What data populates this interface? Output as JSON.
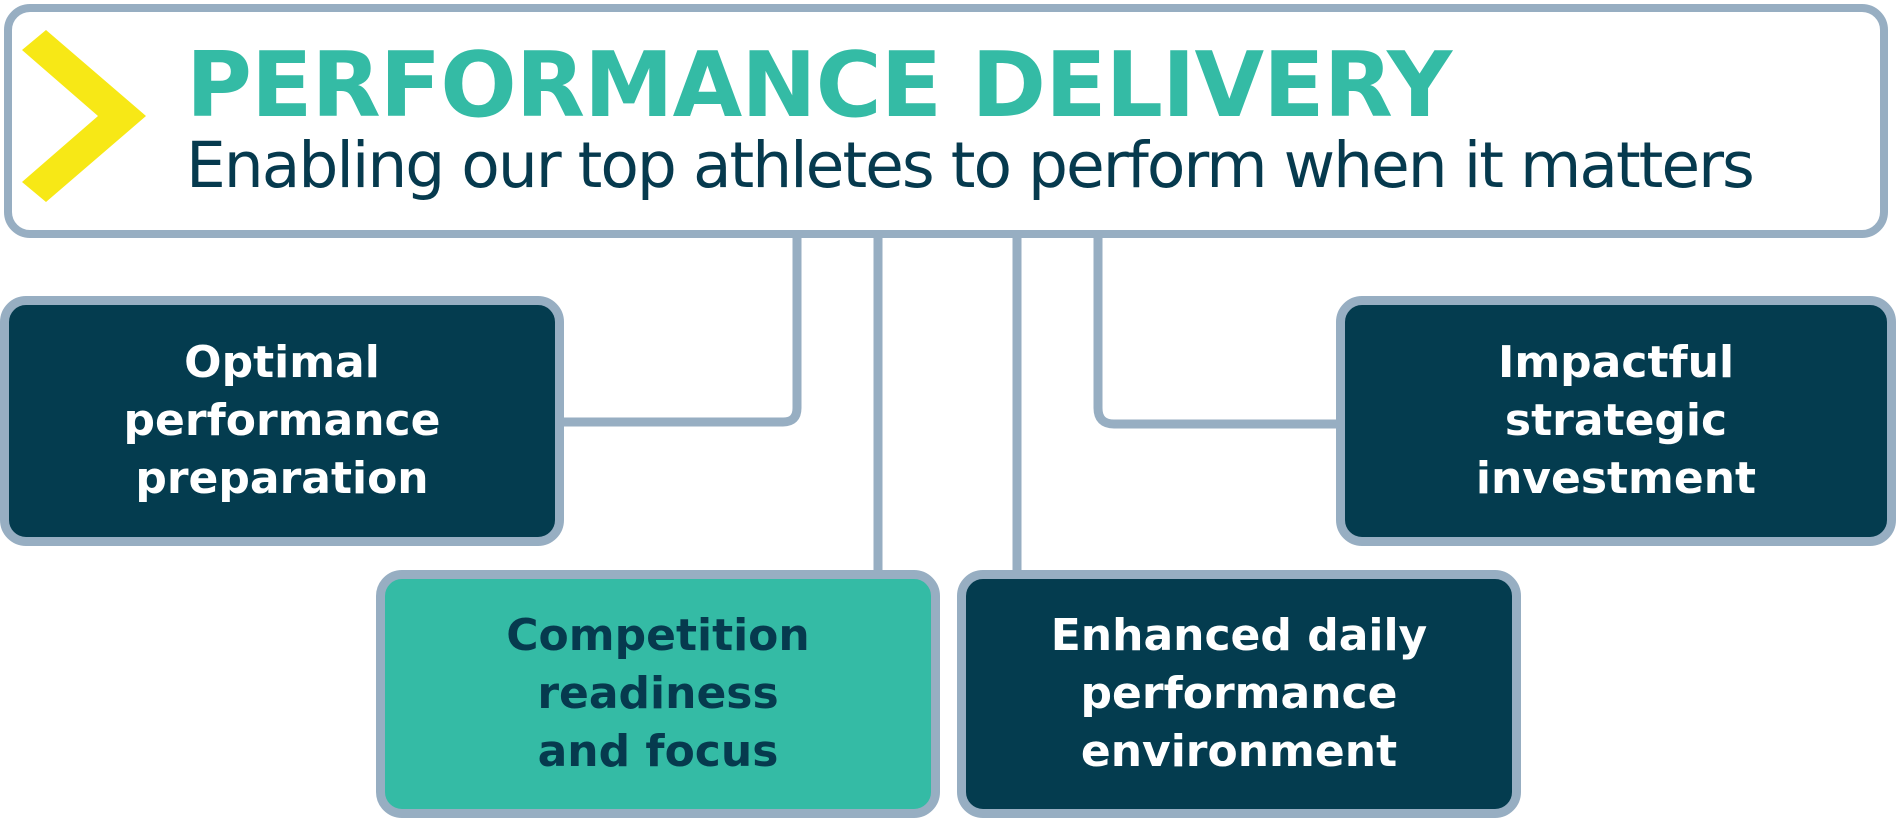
{
  "header": {
    "title": "PERFORMANCE DELIVERY",
    "subtitle": "Enabling our top athletes to perform when it matters"
  },
  "nodes": {
    "optimal_preparation": {
      "lines": [
        "Optimal",
        "performance",
        "preparation"
      ]
    },
    "strategic_investment": {
      "lines": [
        "Impactful",
        "strategic",
        "investment"
      ]
    },
    "competition_readiness": {
      "lines": [
        "Competition",
        "readiness",
        "and focus"
      ]
    },
    "daily_environment": {
      "lines": [
        "Enhanced daily",
        "performance",
        "environment"
      ]
    }
  },
  "colors": {
    "accent_teal": "#34bba5",
    "dark_navy": "#043c4f",
    "border_grey_blue": "#97aec2",
    "chevron_yellow": "#f7e816"
  },
  "icons": {
    "header_icon": "chevron-right-icon"
  }
}
